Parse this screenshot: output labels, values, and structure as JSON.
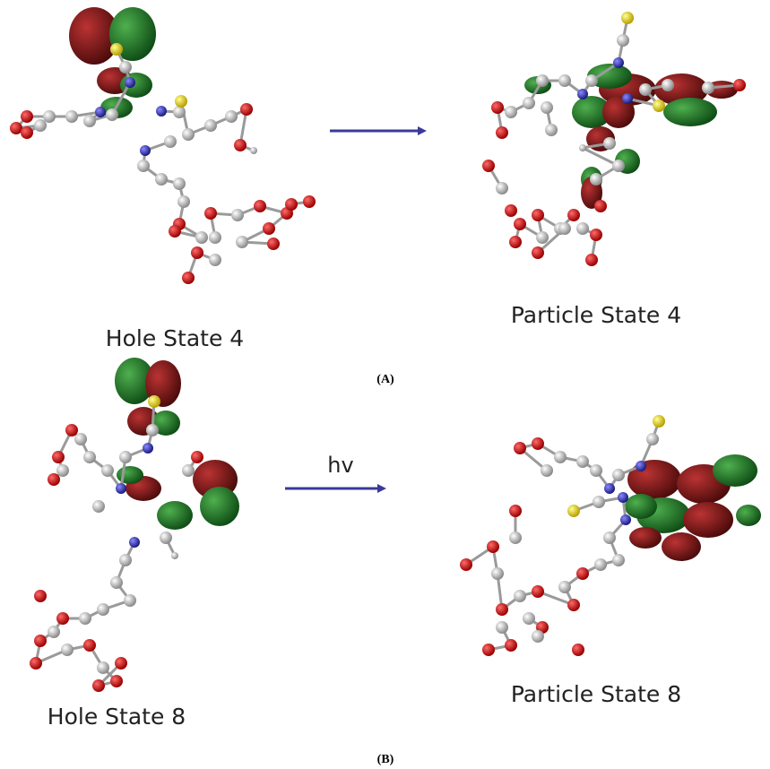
{
  "panels": [
    {
      "label": "(A)",
      "left": {
        "caption": "Hole State 4"
      },
      "right": {
        "caption": "Particle State 4"
      }
    },
    {
      "label": "(B)",
      "arrow_label": "hv",
      "left": {
        "caption": "Hole State 8"
      },
      "right": {
        "caption": "Particle State 8"
      }
    }
  ]
}
